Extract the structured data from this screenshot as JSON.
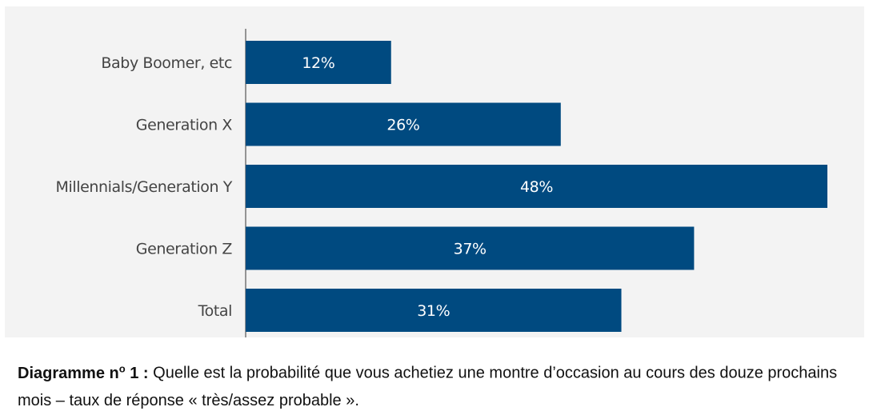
{
  "chart_data": {
    "type": "bar",
    "orientation": "horizontal",
    "categories": [
      "Baby Boomer, etc",
      "Generation X",
      "Millennials/Generation Y",
      "Generation Z",
      "Total"
    ],
    "values": [
      12,
      26,
      48,
      37,
      31
    ],
    "value_labels": [
      "12%",
      "26%",
      "48%",
      "37%",
      "31%"
    ],
    "unit": "%",
    "xlim": [
      0,
      48
    ],
    "bar_color": "#004a80",
    "background_color": "#f3f3f3",
    "grid": false,
    "legend": false
  },
  "caption": {
    "prefix": "Diagramme n",
    "superscript": "o",
    "number": " 1 :",
    "text": " Quelle est la probabilité que vous achetiez une montre d’occasion au cours des douze prochains mois – taux de réponse « très/assez probable »."
  }
}
